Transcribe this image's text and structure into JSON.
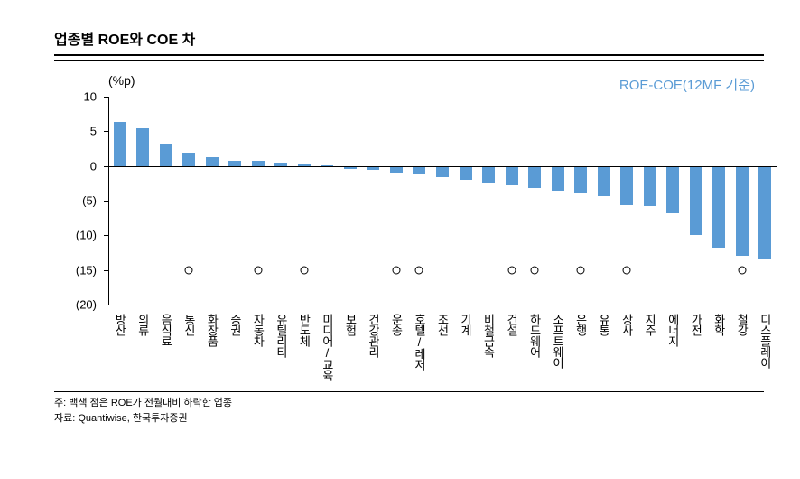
{
  "title": "업종별 ROE와 COE 차",
  "chart": {
    "type": "bar",
    "y_unit": "(%p)",
    "legend": "ROE-COE(12MF 기준)",
    "ylim": [
      -20,
      10
    ],
    "yticks": [
      {
        "v": 10,
        "label": "10"
      },
      {
        "v": 5,
        "label": "5"
      },
      {
        "v": 0,
        "label": "0"
      },
      {
        "v": -5,
        "label": "(5)"
      },
      {
        "v": -10,
        "label": "(10)"
      },
      {
        "v": -15,
        "label": "(15)"
      },
      {
        "v": -20,
        "label": "(20)"
      }
    ],
    "bar_color": "#5a9bd5",
    "bar_width_ratio": 0.55,
    "background_color": "#ffffff",
    "axis_color": "#000000",
    "label_fontsize": 13,
    "marker_y": -15,
    "categories": [
      {
        "label": "방산",
        "value": 6.4,
        "marker": false
      },
      {
        "label": "의류",
        "value": 5.4,
        "marker": false
      },
      {
        "label": "음식료",
        "value": 3.2,
        "marker": false
      },
      {
        "label": "통신",
        "value": 1.9,
        "marker": true
      },
      {
        "label": "화장품",
        "value": 1.2,
        "marker": false
      },
      {
        "label": "증권",
        "value": 0.8,
        "marker": false
      },
      {
        "label": "자동차",
        "value": 0.7,
        "marker": true
      },
      {
        "label": "유틸리티",
        "value": 0.5,
        "marker": false
      },
      {
        "label": "반도체",
        "value": 0.3,
        "marker": true
      },
      {
        "label": "미디어/교육",
        "value": 0.1,
        "marker": false
      },
      {
        "label": "보험",
        "value": -0.4,
        "marker": false
      },
      {
        "label": "건강관리",
        "value": -0.6,
        "marker": false
      },
      {
        "label": "운송",
        "value": -0.9,
        "marker": true
      },
      {
        "label": "호텔/레저",
        "value": -1.2,
        "marker": true
      },
      {
        "label": "조선",
        "value": -1.6,
        "marker": false
      },
      {
        "label": "기계",
        "value": -2.0,
        "marker": false
      },
      {
        "label": "비철금속",
        "value": -2.4,
        "marker": false
      },
      {
        "label": "건설",
        "value": -2.8,
        "marker": true
      },
      {
        "label": "하드웨어",
        "value": -3.2,
        "marker": true
      },
      {
        "label": "소프트웨어",
        "value": -3.6,
        "marker": false
      },
      {
        "label": "은행",
        "value": -4.0,
        "marker": true
      },
      {
        "label": "유통",
        "value": -4.3,
        "marker": false
      },
      {
        "label": "상사",
        "value": -5.6,
        "marker": true
      },
      {
        "label": "지주",
        "value": -5.8,
        "marker": false
      },
      {
        "label": "에너지",
        "value": -6.8,
        "marker": false
      },
      {
        "label": "가전",
        "value": -9.9,
        "marker": false
      },
      {
        "label": "화학",
        "value": -11.8,
        "marker": false
      },
      {
        "label": "철강",
        "value": -13.0,
        "marker": true
      },
      {
        "label": "디스플레이",
        "value": -13.5,
        "marker": false
      }
    ]
  },
  "footnotes": [
    "주: 백색 점은 ROE가 전월대비 하락한 업종",
    "자료: Quantiwise, 한국투자증권"
  ]
}
